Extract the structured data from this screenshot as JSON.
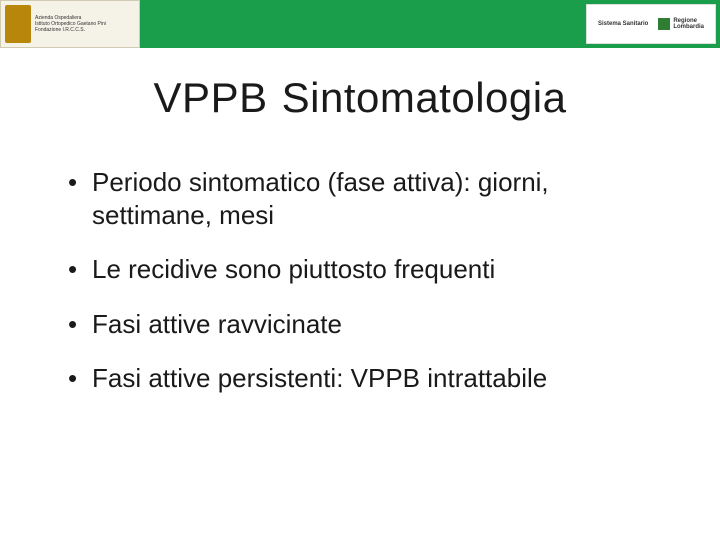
{
  "header": {
    "left_logo": {
      "org_line1": "Azienda Ospedaliera",
      "org_line2": "Istituto Ortopedico Gaetano Pini",
      "org_line3": "Fondazione I.R.C.C.S."
    },
    "right_logo": {
      "system": "Sistema Sanitario",
      "region_line1": "Regione",
      "region_line2": "Lombardia"
    }
  },
  "title": {
    "part1": "VPPB",
    "part2": "Sintomatologia"
  },
  "bullets": [
    "Periodo sintomatico (fase attiva): giorni, settimane, mesi",
    "Le recidive sono piuttosto frequenti",
    "Fasi attive ravvicinate",
    "Fasi attive persistenti: VPPB intrattabile"
  ],
  "colors": {
    "header_bg": "#1a9e4b",
    "text": "#1a1a1a",
    "page_bg": "#ffffff"
  },
  "typography": {
    "title_fontsize": 42,
    "bullet_fontsize": 26,
    "font_family": "Arial"
  }
}
